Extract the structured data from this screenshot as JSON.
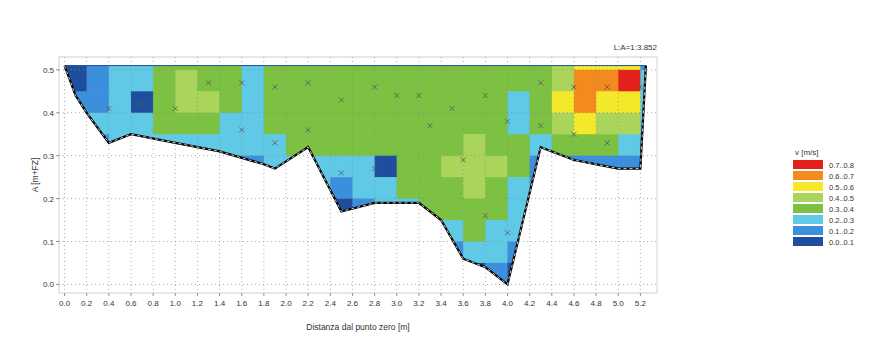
{
  "chart_data": {
    "type": "contour",
    "annotation": "L:A=1:3.852",
    "x_label": "Distanza dal punto zero [m]",
    "y_label": "A [m+FZ]",
    "xlim": [
      -0.05,
      5.35
    ],
    "ylim": [
      -0.02,
      0.53
    ],
    "grid": true,
    "xticks": [
      {
        "value": 0,
        "label": "0.0"
      },
      {
        "value": 0.2,
        "label": "0.2"
      },
      {
        "value": 0.4,
        "label": "0.4"
      },
      {
        "value": 0.6,
        "label": "0.6"
      },
      {
        "value": 0.8,
        "label": "0.8"
      },
      {
        "value": 1,
        "label": "1.0"
      },
      {
        "value": 1.2,
        "label": "1.2"
      },
      {
        "value": 1.4,
        "label": "1.4"
      },
      {
        "value": 1.6,
        "label": "1.6"
      },
      {
        "value": 1.8,
        "label": "1.8"
      },
      {
        "value": 2,
        "label": "2.0"
      },
      {
        "value": 2.2,
        "label": "2.2"
      },
      {
        "value": 2.4,
        "label": "2.4"
      },
      {
        "value": 2.6,
        "label": "2.6"
      },
      {
        "value": 2.8,
        "label": "2.8"
      },
      {
        "value": 3,
        "label": "3.0"
      },
      {
        "value": 3.2,
        "label": "3.2"
      },
      {
        "value": 3.4,
        "label": "3.4"
      },
      {
        "value": 3.6,
        "label": "3.6"
      },
      {
        "value": 3.8,
        "label": "3.8"
      },
      {
        "value": 4,
        "label": "4.0"
      },
      {
        "value": 4.2,
        "label": "4.2"
      },
      {
        "value": 4.4,
        "label": "4.4"
      },
      {
        "value": 4.6,
        "label": "4.6"
      },
      {
        "value": 4.8,
        "label": "4.8"
      },
      {
        "value": 5,
        "label": "5.0"
      },
      {
        "value": 5.2,
        "label": "5.2"
      }
    ],
    "yticks": [
      {
        "value": 0,
        "label": "0.0"
      },
      {
        "value": 0.1,
        "label": "0.1"
      },
      {
        "value": 0.2,
        "label": "0.2"
      },
      {
        "value": 0.3,
        "label": "0.3"
      },
      {
        "value": 0.4,
        "label": "0.4"
      },
      {
        "value": 0.5,
        "label": "0.5"
      }
    ],
    "water_level": 0.51,
    "bed": {
      "x": [
        0,
        0.1,
        0.2,
        0.4,
        0.6,
        1.0,
        1.4,
        1.8,
        1.9,
        2.2,
        2.5,
        2.8,
        3.2,
        3.4,
        3.6,
        3.8,
        4.0,
        4.3,
        4.6,
        5.0,
        5.2,
        5.25
      ],
      "y": [
        0.51,
        0.44,
        0.4,
        0.33,
        0.35,
        0.33,
        0.31,
        0.28,
        0.27,
        0.32,
        0.17,
        0.19,
        0.19,
        0.15,
        0.06,
        0.04,
        0.0,
        0.32,
        0.29,
        0.27,
        0.27,
        0.51
      ]
    },
    "points": {
      "marker": "x",
      "x": [
        0.4,
        0.7,
        1.0,
        1.3,
        1.6,
        1.6,
        1.9,
        1.9,
        2.2,
        2.2,
        2.5,
        2.5,
        2.8,
        2.8,
        3.0,
        3.2,
        3.3,
        3.5,
        3.6,
        3.8,
        3.8,
        4.0,
        4.0,
        4.3,
        4.3,
        4.6,
        4.6,
        4.9,
        4.9,
        5.2
      ],
      "y": [
        0.41,
        0.42,
        0.41,
        0.47,
        0.47,
        0.36,
        0.46,
        0.33,
        0.47,
        0.36,
        0.43,
        0.26,
        0.46,
        0.27,
        0.44,
        0.44,
        0.37,
        0.41,
        0.29,
        0.44,
        0.16,
        0.38,
        0.12,
        0.47,
        0.37,
        0.35,
        0.46,
        0.33,
        0.46,
        0.46
      ]
    },
    "cells": {
      "x_edges": [
        0,
        0.2,
        0.4,
        0.6,
        0.8,
        1.0,
        1.2,
        1.4,
        1.6,
        1.8,
        2.0,
        2.2,
        2.4,
        2.6,
        2.8,
        3.0,
        3.2,
        3.4,
        3.6,
        3.8,
        4.0,
        4.2,
        4.4,
        4.6,
        4.8,
        5.0,
        5.2,
        5.3
      ],
      "y_edges": [
        0.55,
        0.5,
        0.45,
        0.4,
        0.35,
        0.3,
        0.25,
        0.2,
        0.15,
        0.1,
        0.05,
        0
      ],
      "values": [
        [
          0.05,
          0.12,
          0.25,
          0.28,
          0.35,
          0.38,
          0.36,
          0.32,
          0.28,
          0.32,
          0.35,
          0.36,
          0.36,
          0.36,
          0.36,
          0.37,
          0.37,
          0.36,
          0.36,
          0.36,
          0.36,
          0.38,
          0.45,
          0.55,
          0.52,
          0.55,
          0.15
        ],
        [
          0.08,
          0.15,
          0.25,
          0.28,
          0.36,
          0.42,
          0.38,
          0.32,
          0.28,
          0.32,
          0.35,
          0.36,
          0.36,
          0.36,
          0.36,
          0.37,
          0.37,
          0.36,
          0.36,
          0.36,
          0.35,
          0.38,
          0.45,
          0.62,
          0.65,
          0.75,
          0.2
        ],
        [
          0.12,
          0.18,
          0.22,
          0.08,
          0.35,
          0.43,
          0.42,
          0.3,
          0.25,
          0.3,
          0.34,
          0.35,
          0.35,
          0.35,
          0.35,
          0.36,
          0.36,
          0.35,
          0.35,
          0.33,
          0.25,
          0.35,
          0.52,
          0.6,
          0.55,
          0.5,
          0.2
        ],
        [
          0.15,
          0.2,
          0.24,
          0.25,
          0.3,
          0.38,
          0.33,
          0.28,
          0.26,
          0.3,
          0.34,
          0.35,
          0.35,
          0.35,
          0.35,
          0.35,
          0.35,
          0.35,
          0.35,
          0.32,
          0.25,
          0.33,
          0.45,
          0.5,
          0.48,
          0.42,
          0.2
        ],
        [
          0.12,
          0.15,
          0.2,
          0.22,
          0.22,
          0.24,
          0.25,
          0.24,
          0.22,
          0.25,
          0.3,
          0.33,
          0.35,
          0.3,
          0.33,
          0.35,
          0.36,
          0.38,
          0.4,
          0.35,
          0.3,
          0.2,
          0.3,
          0.32,
          0.3,
          0.28,
          0.15
        ],
        [
          0.1,
          0.1,
          0.1,
          0.1,
          0.1,
          0.1,
          0.1,
          0.15,
          0.18,
          0.2,
          0.2,
          0.25,
          0.2,
          0.22,
          0.08,
          0.35,
          0.36,
          0.4,
          0.45,
          0.42,
          0.3,
          0.1,
          0.1,
          0.1,
          0.12,
          0.12,
          0.1
        ],
        [
          0.1,
          0.1,
          0.1,
          0.1,
          0.1,
          0.1,
          0.1,
          0.1,
          0.1,
          0.1,
          0.15,
          0.2,
          0.15,
          0.2,
          0.25,
          0.33,
          0.35,
          0.38,
          0.42,
          0.35,
          0.25,
          0.1,
          0.1,
          0.1,
          0.1,
          0.1,
          0.1
        ],
        [
          0.1,
          0.1,
          0.1,
          0.1,
          0.1,
          0.1,
          0.1,
          0.1,
          0.1,
          0.1,
          0.1,
          0.1,
          0.08,
          0.15,
          0.2,
          0.25,
          0.3,
          0.33,
          0.35,
          0.3,
          0.2,
          0.1,
          0.1,
          0.1,
          0.1,
          0.1,
          0.1
        ],
        [
          0.1,
          0.1,
          0.1,
          0.1,
          0.1,
          0.1,
          0.1,
          0.1,
          0.1,
          0.1,
          0.1,
          0.1,
          0.1,
          0.1,
          0.1,
          0.1,
          0.15,
          0.25,
          0.3,
          0.28,
          0.2,
          0.1,
          0.1,
          0.1,
          0.1,
          0.1,
          0.1
        ],
        [
          0.05,
          0.05,
          0.05,
          0.05,
          0.05,
          0.05,
          0.05,
          0.05,
          0.05,
          0.05,
          0.05,
          0.05,
          0.05,
          0.05,
          0.05,
          0.05,
          0.05,
          0.12,
          0.2,
          0.22,
          0.15,
          0.05,
          0.05,
          0.05,
          0.05,
          0.05,
          0.05
        ],
        [
          0.05,
          0.05,
          0.05,
          0.05,
          0.05,
          0.05,
          0.05,
          0.05,
          0.05,
          0.05,
          0.05,
          0.05,
          0.05,
          0.05,
          0.05,
          0.05,
          0.05,
          0.05,
          0.08,
          0.12,
          0.08,
          0.05,
          0.05,
          0.05,
          0.05,
          0.05,
          0.05
        ]
      ]
    },
    "colorbar": {
      "title": "v [m/s]",
      "levels": [
        0,
        0.1,
        0.2,
        0.3,
        0.4,
        0.5,
        0.6,
        0.7,
        0.8
      ],
      "labels": [
        "0.0..0.1",
        "0.1..0.2",
        "0.2..0.3",
        "0.3..0.4",
        "0.4..0.5",
        "0.5..0.6",
        "0.6..0.7",
        "0.7..0.8"
      ],
      "colors": [
        "#1f4e9e",
        "#3b8fdc",
        "#5fc9e6",
        "#7cc142",
        "#abd45a",
        "#f4e82a",
        "#f28a1e",
        "#e4201c"
      ]
    }
  }
}
